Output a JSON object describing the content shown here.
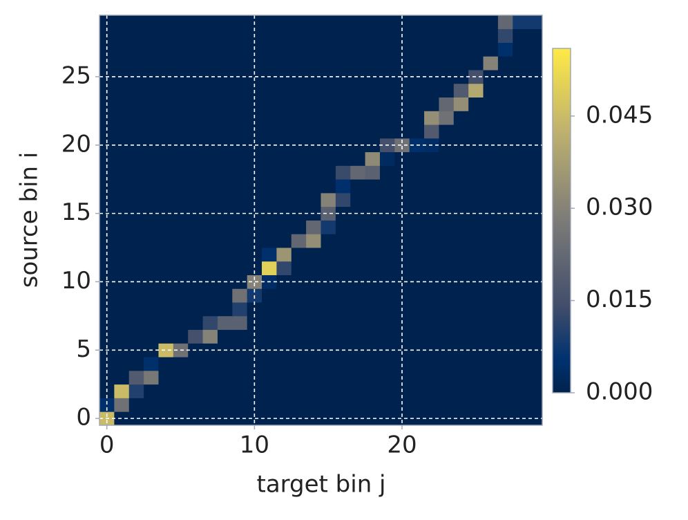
{
  "chart_data": {
    "type": "heatmap",
    "xlabel": "target bin j",
    "ylabel": "source bin i",
    "xlim": [
      -0.5,
      29.5
    ],
    "ylim": [
      -0.5,
      29.5
    ],
    "xticks": [
      0,
      10,
      20
    ],
    "yticks": [
      0,
      5,
      10,
      15,
      20,
      25
    ],
    "grid": true,
    "colormap": "cividis",
    "zlim": [
      0,
      0.056
    ],
    "colorbar_ticks": [
      {
        "value": 0,
        "label": "0.000"
      },
      0.015,
      {
        "value": 0.03,
        "label": "0.030"
      },
      0.045
    ],
    "z": [
      [
        0.045,
        0,
        0,
        0,
        0,
        0,
        0,
        0,
        0,
        0,
        0,
        0,
        0,
        0,
        0,
        0,
        0,
        0,
        0,
        0,
        0,
        0,
        0,
        0,
        0,
        0,
        0,
        0,
        0,
        0
      ],
      [
        0.005,
        0.025,
        0,
        0,
        0,
        0,
        0,
        0,
        0,
        0,
        0,
        0,
        0,
        0,
        0,
        0,
        0,
        0,
        0,
        0,
        0,
        0,
        0,
        0,
        0,
        0,
        0,
        0,
        0,
        0
      ],
      [
        0,
        0.045,
        0.01,
        0,
        0,
        0,
        0,
        0,
        0,
        0,
        0,
        0,
        0,
        0,
        0,
        0,
        0,
        0,
        0,
        0,
        0,
        0,
        0,
        0,
        0,
        0,
        0,
        0,
        0,
        0
      ],
      [
        0,
        0,
        0.018,
        0.027,
        0,
        0,
        0,
        0,
        0,
        0,
        0,
        0,
        0,
        0,
        0,
        0,
        0,
        0,
        0,
        0,
        0,
        0,
        0,
        0,
        0,
        0,
        0,
        0,
        0,
        0
      ],
      [
        0,
        0,
        0,
        0.005,
        0,
        0,
        0,
        0,
        0,
        0,
        0,
        0,
        0,
        0,
        0,
        0,
        0,
        0,
        0,
        0,
        0,
        0,
        0,
        0,
        0,
        0,
        0,
        0,
        0,
        0
      ],
      [
        0,
        0,
        0,
        0,
        0.045,
        0.025,
        0,
        0,
        0,
        0,
        0,
        0,
        0,
        0,
        0,
        0,
        0,
        0,
        0,
        0,
        0,
        0,
        0,
        0,
        0,
        0,
        0,
        0,
        0,
        0
      ],
      [
        0,
        0,
        0,
        0,
        0,
        0,
        0.015,
        0.03,
        0,
        0,
        0,
        0,
        0,
        0,
        0,
        0,
        0,
        0,
        0,
        0,
        0,
        0,
        0,
        0,
        0,
        0,
        0,
        0,
        0,
        0
      ],
      [
        0,
        0,
        0,
        0,
        0,
        0,
        0,
        0.012,
        0.02,
        0.02,
        0,
        0,
        0,
        0,
        0,
        0,
        0,
        0,
        0,
        0,
        0,
        0,
        0,
        0,
        0,
        0,
        0,
        0,
        0,
        0
      ],
      [
        0,
        0,
        0,
        0,
        0,
        0,
        0,
        0,
        0,
        0.01,
        0,
        0,
        0,
        0,
        0,
        0,
        0,
        0,
        0,
        0,
        0,
        0,
        0,
        0,
        0,
        0,
        0,
        0,
        0,
        0
      ],
      [
        0,
        0,
        0,
        0,
        0,
        0,
        0,
        0,
        0,
        0.025,
        0.008,
        0,
        0,
        0,
        0,
        0,
        0,
        0,
        0,
        0,
        0,
        0,
        0,
        0,
        0,
        0,
        0,
        0,
        0,
        0
      ],
      [
        0,
        0,
        0,
        0,
        0,
        0,
        0,
        0,
        0,
        0,
        0.03,
        0.004,
        0,
        0,
        0,
        0,
        0,
        0,
        0,
        0,
        0,
        0,
        0,
        0,
        0,
        0,
        0,
        0,
        0,
        0
      ],
      [
        0,
        0,
        0,
        0,
        0,
        0,
        0,
        0,
        0,
        0,
        0,
        0.05,
        0.012,
        0,
        0,
        0,
        0,
        0,
        0,
        0,
        0,
        0,
        0,
        0,
        0,
        0,
        0,
        0,
        0,
        0
      ],
      [
        0,
        0,
        0,
        0,
        0,
        0,
        0,
        0,
        0,
        0,
        0,
        0.005,
        0.035,
        0,
        0,
        0,
        0,
        0,
        0,
        0,
        0,
        0,
        0,
        0,
        0,
        0,
        0,
        0,
        0,
        0
      ],
      [
        0,
        0,
        0,
        0,
        0,
        0,
        0,
        0,
        0,
        0,
        0,
        0,
        0,
        0.022,
        0.033,
        0,
        0,
        0,
        0,
        0,
        0,
        0,
        0,
        0,
        0,
        0,
        0,
        0,
        0,
        0
      ],
      [
        0,
        0,
        0,
        0,
        0,
        0,
        0,
        0,
        0,
        0,
        0,
        0,
        0,
        0,
        0.022,
        0.008,
        0,
        0,
        0,
        0,
        0,
        0,
        0,
        0,
        0,
        0,
        0,
        0,
        0,
        0
      ],
      [
        0,
        0,
        0,
        0,
        0,
        0,
        0,
        0,
        0,
        0,
        0,
        0,
        0,
        0,
        0,
        0.02,
        0,
        0,
        0,
        0,
        0,
        0,
        0,
        0,
        0,
        0,
        0,
        0,
        0,
        0
      ],
      [
        0,
        0,
        0,
        0,
        0,
        0,
        0,
        0,
        0,
        0,
        0,
        0,
        0,
        0,
        0,
        0.03,
        0.012,
        0,
        0,
        0,
        0,
        0,
        0,
        0,
        0,
        0,
        0,
        0,
        0,
        0
      ],
      [
        0,
        0,
        0,
        0,
        0,
        0,
        0,
        0,
        0,
        0,
        0,
        0,
        0,
        0,
        0,
        0,
        0.005,
        0,
        0,
        0,
        0,
        0,
        0,
        0,
        0,
        0,
        0,
        0,
        0,
        0
      ],
      [
        0,
        0,
        0,
        0,
        0,
        0,
        0,
        0,
        0,
        0,
        0,
        0,
        0,
        0,
        0,
        0,
        0.013,
        0.022,
        0.02,
        0,
        0,
        0,
        0,
        0,
        0,
        0,
        0,
        0,
        0,
        0
      ],
      [
        0,
        0,
        0,
        0,
        0,
        0,
        0,
        0,
        0,
        0,
        0,
        0,
        0,
        0,
        0,
        0,
        0,
        0,
        0.032,
        0.003,
        0,
        0,
        0,
        0,
        0,
        0,
        0,
        0,
        0,
        0
      ],
      [
        0,
        0,
        0,
        0,
        0,
        0,
        0,
        0,
        0,
        0,
        0,
        0,
        0,
        0,
        0,
        0,
        0,
        0,
        0,
        0.015,
        0.025,
        0.005,
        0.004,
        0,
        0,
        0,
        0,
        0,
        0,
        0
      ],
      [
        0,
        0,
        0,
        0,
        0,
        0,
        0,
        0,
        0,
        0,
        0,
        0,
        0,
        0,
        0,
        0,
        0,
        0,
        0,
        0,
        0,
        0,
        0.018,
        0,
        0,
        0,
        0,
        0,
        0,
        0
      ],
      [
        0,
        0,
        0,
        0,
        0,
        0,
        0,
        0,
        0,
        0,
        0,
        0,
        0,
        0,
        0,
        0,
        0,
        0,
        0,
        0,
        0,
        0,
        0.033,
        0.025,
        0,
        0,
        0,
        0,
        0,
        0
      ],
      [
        0,
        0,
        0,
        0,
        0,
        0,
        0,
        0,
        0,
        0,
        0,
        0,
        0,
        0,
        0,
        0,
        0,
        0,
        0,
        0,
        0,
        0,
        0,
        0.022,
        0.033,
        0,
        0,
        0,
        0,
        0
      ],
      [
        0,
        0,
        0,
        0,
        0,
        0,
        0,
        0,
        0,
        0,
        0,
        0,
        0,
        0,
        0,
        0,
        0,
        0,
        0,
        0,
        0,
        0,
        0,
        0,
        0.018,
        0.04,
        0,
        0,
        0,
        0
      ],
      [
        0,
        0,
        0,
        0,
        0,
        0,
        0,
        0,
        0,
        0,
        0,
        0,
        0,
        0,
        0,
        0,
        0,
        0,
        0,
        0,
        0,
        0,
        0,
        0,
        0,
        0.015,
        0,
        0,
        0,
        0
      ],
      [
        0,
        0,
        0,
        0,
        0,
        0,
        0,
        0,
        0,
        0,
        0,
        0,
        0,
        0,
        0,
        0,
        0,
        0,
        0,
        0,
        0,
        0,
        0,
        0,
        0,
        0,
        0.03,
        0,
        0,
        0
      ],
      [
        0,
        0,
        0,
        0,
        0,
        0,
        0,
        0,
        0,
        0,
        0,
        0,
        0,
        0,
        0,
        0,
        0,
        0,
        0,
        0,
        0,
        0,
        0,
        0,
        0,
        0,
        0,
        0.005,
        0,
        0
      ],
      [
        0,
        0,
        0,
        0,
        0,
        0,
        0,
        0,
        0,
        0,
        0,
        0,
        0,
        0,
        0,
        0,
        0,
        0,
        0,
        0,
        0,
        0,
        0,
        0,
        0,
        0,
        0,
        0.012,
        0,
        0
      ],
      [
        0,
        0,
        0,
        0,
        0,
        0,
        0,
        0,
        0,
        0,
        0,
        0,
        0,
        0,
        0,
        0,
        0,
        0,
        0,
        0,
        0,
        0,
        0,
        0,
        0,
        0,
        0,
        0.022,
        0.008,
        0.008
      ]
    ]
  }
}
